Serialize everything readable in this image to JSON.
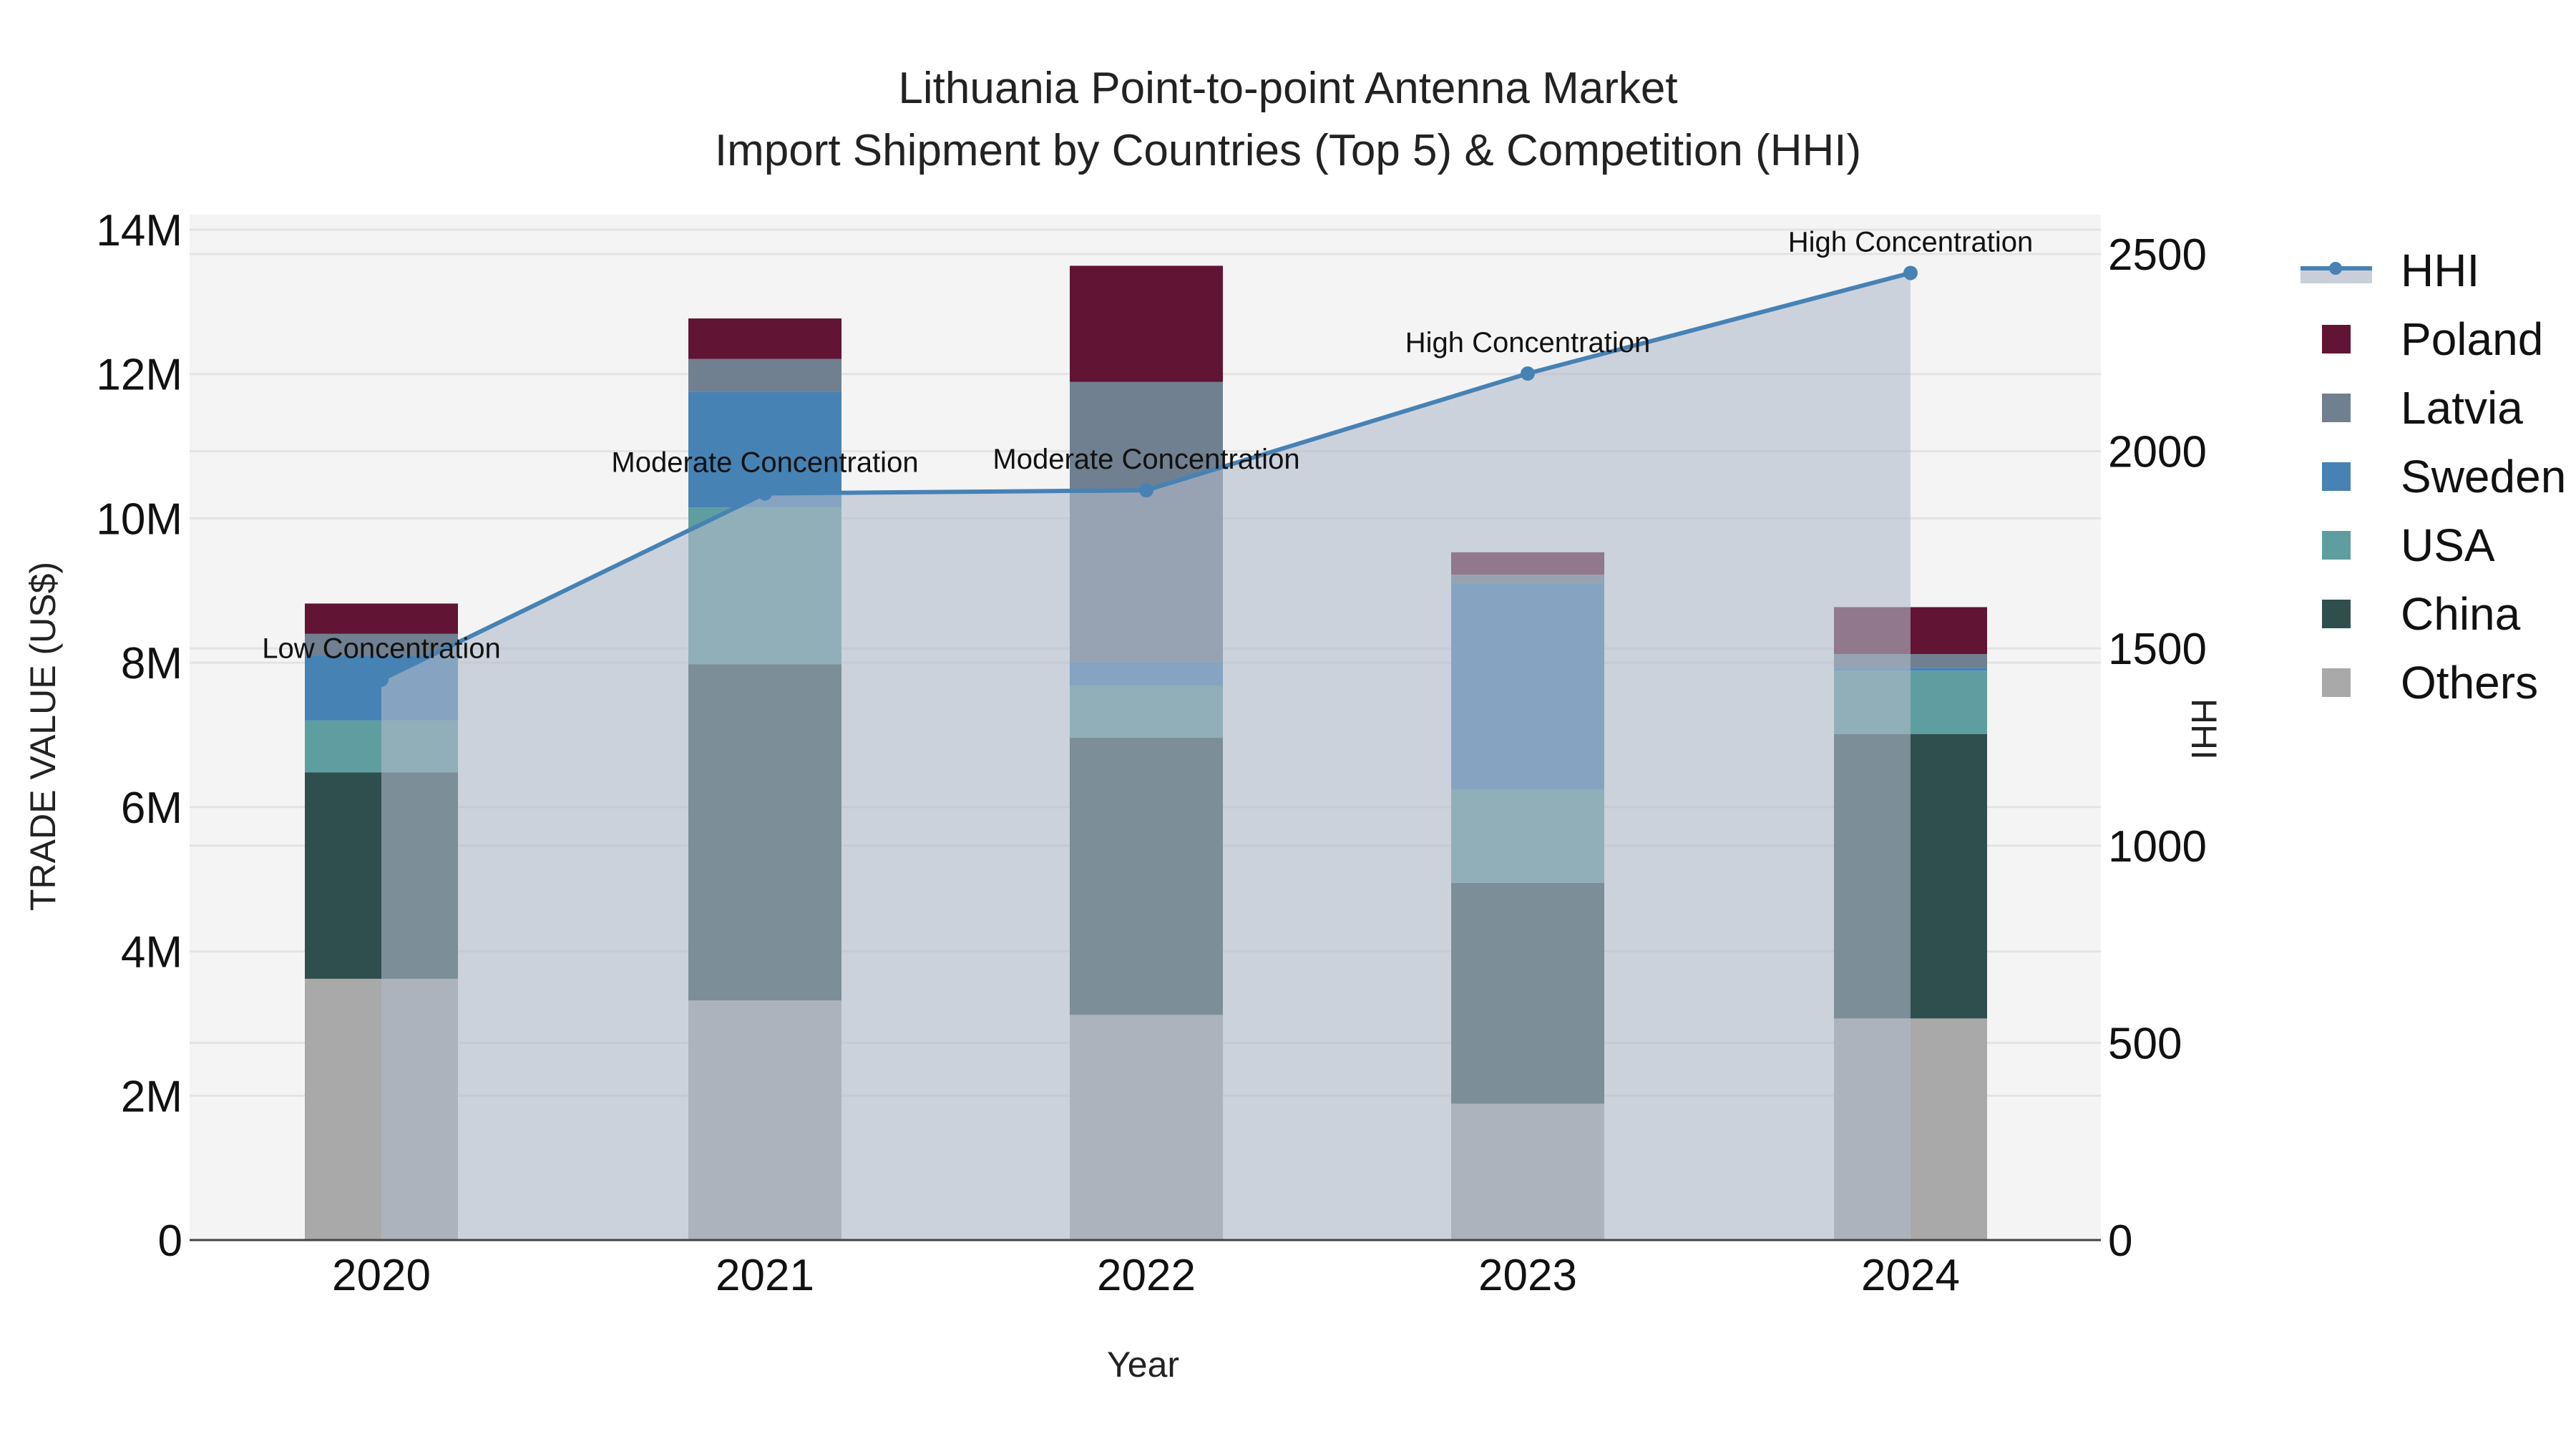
{
  "title": {
    "line1": "Lithuania Point-to-point Antenna Market",
    "line2": "Import Shipment by Countries (Top 5) & Competition (HHI)"
  },
  "axes": {
    "x_title": "Year",
    "y_left_title": "TRADE VALUE (US$)",
    "y_right_title": "HHI",
    "y_left_ticks": [
      "0",
      "2M",
      "4M",
      "6M",
      "8M",
      "10M",
      "12M",
      "14M"
    ],
    "y_right_ticks": [
      "0",
      "500",
      "1000",
      "1500",
      "2000",
      "2500"
    ]
  },
  "legend": {
    "items": [
      {
        "label": "HHI",
        "type": "line",
        "color": "#4682B4"
      },
      {
        "label": "Poland",
        "type": "bar",
        "color": "#611434"
      },
      {
        "label": "Latvia",
        "type": "bar",
        "color": "#708090"
      },
      {
        "label": "Sweden",
        "type": "bar",
        "color": "#4682B4"
      },
      {
        "label": "USA",
        "type": "bar",
        "color": "#5F9EA0"
      },
      {
        "label": "China",
        "type": "bar",
        "color": "#2F4F4F"
      },
      {
        "label": "Others",
        "type": "bar",
        "color": "#A9A9A9"
      }
    ]
  },
  "annotations": [
    {
      "year": "2020",
      "text": "Low Concentration"
    },
    {
      "year": "2021",
      "text": "Moderate Concentration"
    },
    {
      "year": "2022",
      "text": "Moderate Concentration"
    },
    {
      "year": "2023",
      "text": "High Concentration"
    },
    {
      "year": "2024",
      "text": "High Concentration"
    }
  ],
  "colors": {
    "plot_bg": "#F4F4F4",
    "grid": "#E3E3E3",
    "hhi_line": "#4682B4",
    "hhi_fill": "rgba(176,186,202,0.6)"
  },
  "chart_data": {
    "type": "bar",
    "title": "Lithuania Point-to-point Antenna Market - Import Shipment by Countries (Top 5) & Competition (HHI)",
    "xlabel": "Year",
    "ylabel": "TRADE VALUE (US$)",
    "y2label": "HHI",
    "categories": [
      "2020",
      "2021",
      "2022",
      "2023",
      "2024"
    ],
    "stacked": true,
    "ylim": [
      0,
      14000000
    ],
    "y2lim": [
      0,
      2500
    ],
    "grid": true,
    "legend_position": "right",
    "series": [
      {
        "name": "Others",
        "color": "#A9A9A9",
        "values": [
          3620000,
          3320000,
          3120000,
          1890000,
          3070000
        ]
      },
      {
        "name": "China",
        "color": "#2F4F4F",
        "values": [
          2860000,
          4660000,
          3840000,
          3060000,
          3940000
        ]
      },
      {
        "name": "USA",
        "color": "#5F9EA0",
        "values": [
          720000,
          2170000,
          720000,
          1290000,
          880000
        ]
      },
      {
        "name": "Sweden",
        "color": "#4682B4",
        "values": [
          900000,
          1600000,
          330000,
          2860000,
          40000
        ]
      },
      {
        "name": "Latvia",
        "color": "#708090",
        "values": [
          300000,
          460000,
          3880000,
          120000,
          190000
        ]
      },
      {
        "name": "Poland",
        "color": "#611434",
        "values": [
          420000,
          560000,
          1610000,
          310000,
          650000
        ]
      }
    ],
    "line_series": {
      "name": "HHI",
      "axis": "right",
      "type": "area-line",
      "color": "#4682B4",
      "values": [
        1421,
        1893,
        1901,
        2197,
        2452
      ],
      "labels": [
        "Low Concentration",
        "Moderate Concentration",
        "Moderate Concentration",
        "High Concentration",
        "High Concentration"
      ]
    }
  }
}
